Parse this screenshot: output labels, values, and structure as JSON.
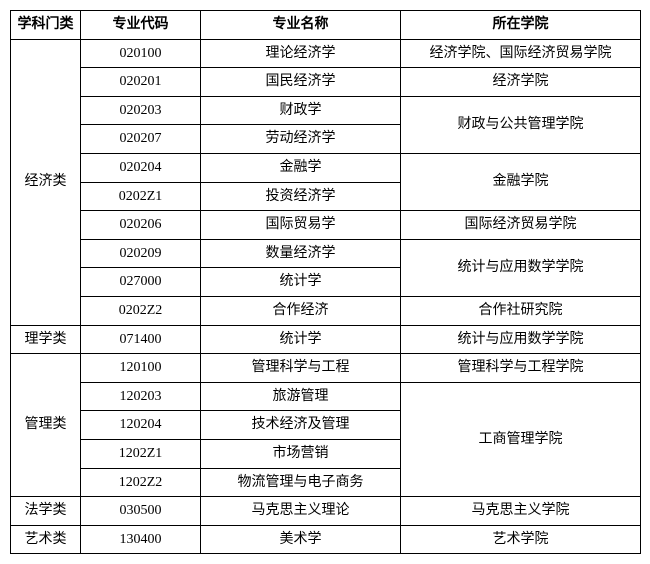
{
  "headers": {
    "category": "学科门类",
    "code": "专业代码",
    "name": "专业名称",
    "college": "所在学院"
  },
  "rows": [
    {
      "category": "经济类",
      "categoryRowspan": 10,
      "code": "020100",
      "name": "理论经济学",
      "college": "经济学院、国际经济贸易学院",
      "collegeRowspan": 1
    },
    {
      "code": "020201",
      "name": "国民经济学",
      "college": "经济学院",
      "collegeRowspan": 1
    },
    {
      "code": "020203",
      "name": "财政学",
      "college": "财政与公共管理学院",
      "collegeRowspan": 2
    },
    {
      "code": "020207",
      "name": "劳动经济学"
    },
    {
      "code": "020204",
      "name": "金融学",
      "college": "金融学院",
      "collegeRowspan": 2
    },
    {
      "code": "0202Z1",
      "name": "投资经济学"
    },
    {
      "code": "020206",
      "name": "国际贸易学",
      "college": "国际经济贸易学院",
      "collegeRowspan": 1
    },
    {
      "code": "020209",
      "name": "数量经济学",
      "college": "统计与应用数学学院",
      "collegeRowspan": 2
    },
    {
      "code": "027000",
      "name": "统计学"
    },
    {
      "code": "0202Z2",
      "name": "合作经济",
      "college": "合作社研究院",
      "collegeRowspan": 1
    },
    {
      "category": "理学类",
      "categoryRowspan": 1,
      "code": "071400",
      "name": "统计学",
      "college": "统计与应用数学学院",
      "collegeRowspan": 1
    },
    {
      "category": "管理类",
      "categoryRowspan": 5,
      "code": "120100",
      "name": "管理科学与工程",
      "college": "管理科学与工程学院",
      "collegeRowspan": 1
    },
    {
      "code": "120203",
      "name": "旅游管理",
      "college": "工商管理学院",
      "collegeRowspan": 4
    },
    {
      "code": "120204",
      "name": "技术经济及管理"
    },
    {
      "code": "1202Z1",
      "name": "市场营销"
    },
    {
      "code": "1202Z2",
      "name": "物流管理与电子商务"
    },
    {
      "category": "法学类",
      "categoryRowspan": 1,
      "code": "030500",
      "name": "马克思主义理论",
      "college": "马克思主义学院",
      "collegeRowspan": 1
    },
    {
      "category": "艺术类",
      "categoryRowspan": 1,
      "code": "130400",
      "name": "美术学",
      "college": "艺术学院",
      "collegeRowspan": 1
    }
  ]
}
